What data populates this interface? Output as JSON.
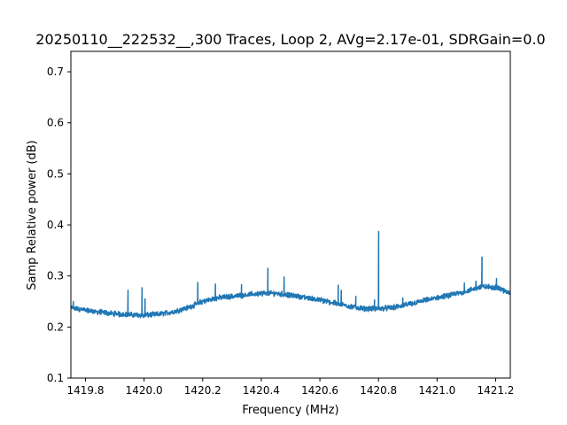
{
  "chart_data": {
    "type": "line",
    "title": "20250110__222532__,300 Traces, Loop 2, AVg=2.17e-01, SDRGain=0.0",
    "xlabel": "Frequency (MHz)",
    "ylabel": "Samp Relative power (dB)",
    "xlim": [
      1419.75,
      1421.25
    ],
    "ylim": [
      0.1,
      0.74
    ],
    "xticks": [
      1419.8,
      1420.0,
      1420.2,
      1420.4,
      1420.6,
      1420.8,
      1421.0,
      1421.2
    ],
    "xtick_labels": [
      "1419.8",
      "1420.0",
      "1420.2",
      "1420.4",
      "1420.6",
      "1420.8",
      "1421.0",
      "1421.2"
    ],
    "yticks": [
      0.1,
      0.2,
      0.3,
      0.4,
      0.5,
      0.6,
      0.7
    ],
    "ytick_labels": [
      "0.1",
      "0.2",
      "0.3",
      "0.4",
      "0.5",
      "0.6",
      "0.7"
    ],
    "grid": false,
    "legend": "none",
    "line_color": "#1f77b4",
    "series": [
      {
        "x": [
          1419.75,
          1419.8,
          1419.85,
          1419.9,
          1419.95,
          1420.0,
          1420.05,
          1420.1,
          1420.15,
          1420.2,
          1420.25,
          1420.3,
          1420.35,
          1420.4,
          1420.45,
          1420.5,
          1420.55,
          1420.6,
          1420.65,
          1420.7,
          1420.75,
          1420.8,
          1420.85,
          1420.9,
          1420.95,
          1421.0,
          1421.05,
          1421.1,
          1421.15,
          1421.2,
          1421.25
        ],
        "y": [
          0.238,
          0.233,
          0.229,
          0.226,
          0.224,
          0.223,
          0.225,
          0.23,
          0.238,
          0.25,
          0.257,
          0.26,
          0.263,
          0.266,
          0.266,
          0.262,
          0.258,
          0.253,
          0.247,
          0.241,
          0.236,
          0.236,
          0.238,
          0.244,
          0.251,
          0.257,
          0.263,
          0.27,
          0.279,
          0.278,
          0.266
        ]
      }
    ],
    "spikes": [
      {
        "x": 1419.758,
        "y": 0.25
      },
      {
        "x": 1419.945,
        "y": 0.272
      },
      {
        "x": 1419.993,
        "y": 0.277
      },
      {
        "x": 1420.003,
        "y": 0.255
      },
      {
        "x": 1420.183,
        "y": 0.287
      },
      {
        "x": 1420.243,
        "y": 0.284
      },
      {
        "x": 1420.333,
        "y": 0.283
      },
      {
        "x": 1420.423,
        "y": 0.315
      },
      {
        "x": 1420.478,
        "y": 0.298
      },
      {
        "x": 1420.663,
        "y": 0.282
      },
      {
        "x": 1420.673,
        "y": 0.272
      },
      {
        "x": 1420.723,
        "y": 0.26
      },
      {
        "x": 1420.787,
        "y": 0.253
      },
      {
        "x": 1420.801,
        "y": 0.387
      },
      {
        "x": 1420.883,
        "y": 0.257
      },
      {
        "x": 1421.093,
        "y": 0.286
      },
      {
        "x": 1421.133,
        "y": 0.29
      },
      {
        "x": 1421.153,
        "y": 0.337
      },
      {
        "x": 1421.203,
        "y": 0.295
      }
    ]
  }
}
